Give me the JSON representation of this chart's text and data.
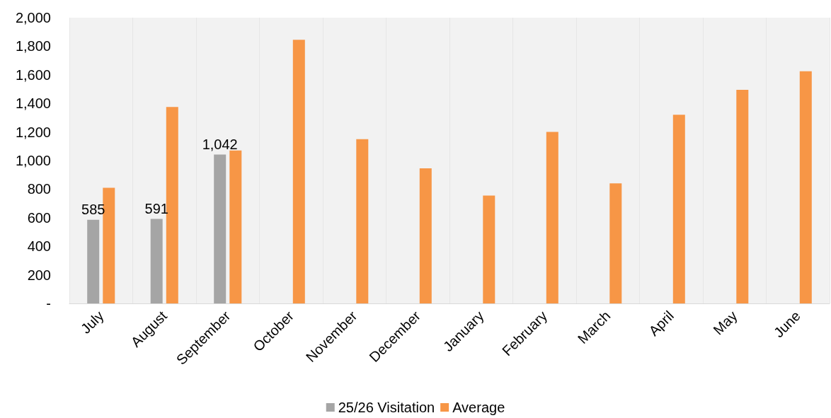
{
  "chart_data": {
    "type": "bar",
    "categories": [
      "July",
      "August",
      "September",
      "October",
      "November",
      "December",
      "January",
      "February",
      "March",
      "April",
      "May",
      "June"
    ],
    "series": [
      {
        "name": "25/26 Visitation",
        "color": "#a5a5a5",
        "values": [
          585,
          591,
          1042,
          null,
          null,
          null,
          null,
          null,
          null,
          null,
          null,
          null
        ],
        "value_labels": [
          "585",
          "591",
          "1,042",
          null,
          null,
          null,
          null,
          null,
          null,
          null,
          null,
          null
        ]
      },
      {
        "name": "Average",
        "color": "#f79646",
        "values": [
          810,
          1375,
          1070,
          1845,
          1150,
          945,
          755,
          1200,
          840,
          1320,
          1495,
          1625
        ]
      }
    ],
    "ylim": [
      0,
      2000
    ],
    "yticks": [
      {
        "value": 0,
        "label": "-"
      },
      {
        "value": 200,
        "label": "200"
      },
      {
        "value": 400,
        "label": "400"
      },
      {
        "value": 600,
        "label": "600"
      },
      {
        "value": 800,
        "label": "800"
      },
      {
        "value": 1000,
        "label": "1,000"
      },
      {
        "value": 1200,
        "label": "1,200"
      },
      {
        "value": 1400,
        "label": "1,400"
      },
      {
        "value": 1600,
        "label": "1,600"
      },
      {
        "value": 1800,
        "label": "1,800"
      },
      {
        "value": 2000,
        "label": "2,000"
      }
    ],
    "grid": true,
    "legend": "bottom"
  }
}
